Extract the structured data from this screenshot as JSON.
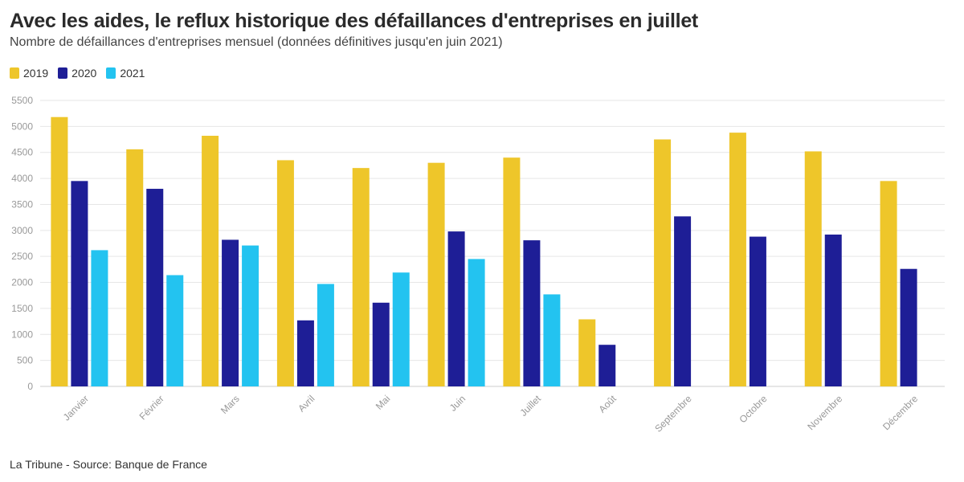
{
  "header": {
    "title": "Avec les aides, le reflux historique des défaillances d'entreprises en juillet",
    "subtitle": "Nombre de défaillances d'entreprises mensuel (données définitives jusqu'en juin 2021)"
  },
  "footer": {
    "source": "La Tribune - Source: Banque de France"
  },
  "chart_data": {
    "type": "bar",
    "categories": [
      "Janvier",
      "Février",
      "Mars",
      "Avril",
      "Mai",
      "Juin",
      "Juillet",
      "Août",
      "Septembre",
      "Octobre",
      "Novembre",
      "Décembre"
    ],
    "series": [
      {
        "name": "2019",
        "color": "#EEC62A",
        "values": [
          5180,
          4560,
          4820,
          4350,
          4200,
          4300,
          4400,
          1290,
          4750,
          4880,
          4520,
          3950
        ]
      },
      {
        "name": "2020",
        "color": "#1E1E96",
        "values": [
          3950,
          3800,
          2820,
          1270,
          1610,
          2980,
          2810,
          800,
          3270,
          2880,
          2920,
          2260
        ]
      },
      {
        "name": "2021",
        "color": "#23C3F0",
        "values": [
          2620,
          2140,
          2710,
          1970,
          2190,
          2450,
          1770,
          null,
          null,
          null,
          null,
          null
        ]
      }
    ],
    "ylim": [
      0,
      5500
    ],
    "yticks": [
      0,
      500,
      1000,
      1500,
      2000,
      2500,
      3000,
      3500,
      4000,
      4500,
      5000,
      5500
    ],
    "xlabel": "",
    "ylabel": "",
    "grid": true,
    "legend_position": "top-left"
  }
}
